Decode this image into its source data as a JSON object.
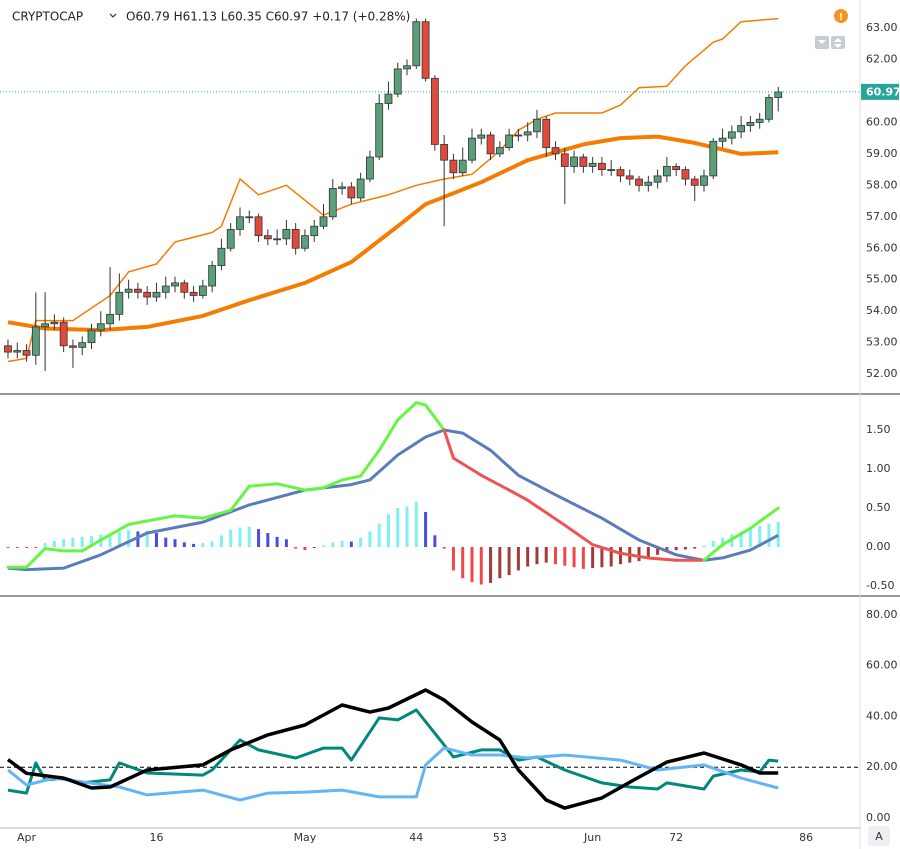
{
  "chart_data": [
    {
      "type": "candlestick",
      "title": "CRYPTOCAP",
      "subtitle": "O60.79 H61.13 L60.35 C60.97 +0.17 (+0.28%)",
      "xlim": [
        -0.86,
        91.81
      ],
      "ylim": [
        51.4,
        63.89
      ],
      "yticks": [
        {
          "value": 52,
          "label": "52.00"
        },
        {
          "value": 53,
          "label": "53.00"
        },
        {
          "value": 54,
          "label": "54.00"
        },
        {
          "value": 55,
          "label": "55.00"
        },
        {
          "value": 56,
          "label": "56.00"
        },
        {
          "value": 57,
          "label": "57.00"
        },
        {
          "value": 58,
          "label": "58.00"
        },
        {
          "value": 59,
          "label": "59.00"
        },
        {
          "value": 60,
          "label": "60.00"
        },
        {
          "value": 61,
          "label": "61.00"
        },
        {
          "value": 62,
          "label": "62.00"
        },
        {
          "value": 63,
          "label": "63.00"
        }
      ],
      "up_color": "#5a9e7a",
      "down_color": "#e04a3c",
      "last_price_color": "#26a69a",
      "x": [
        0,
        1,
        2,
        3,
        4,
        5,
        6,
        7,
        8,
        9,
        10,
        11,
        12,
        13,
        14,
        15,
        16,
        17,
        18,
        19,
        20,
        21,
        22,
        23,
        24,
        25,
        26,
        27,
        28,
        29,
        30,
        31,
        32,
        33,
        34,
        35,
        36,
        37,
        38,
        39,
        40,
        41,
        42,
        43,
        44,
        45,
        46,
        47,
        48,
        49,
        50,
        51,
        52,
        53,
        54,
        55,
        56,
        57,
        58,
        59,
        60,
        61,
        62,
        63,
        64,
        65,
        66,
        67,
        68,
        69,
        70,
        71,
        72,
        73,
        74,
        75,
        76,
        77,
        78,
        79,
        80,
        81,
        82,
        83
      ],
      "open": [
        52.9,
        52.7,
        52.75,
        52.6,
        53.5,
        53.6,
        53.65,
        52.9,
        52.85,
        53.0,
        53.4,
        53.6,
        53.9,
        54.6,
        54.7,
        54.6,
        54.45,
        54.6,
        54.8,
        54.9,
        54.6,
        54.5,
        54.8,
        55.45,
        56.0,
        56.6,
        57.0,
        57.0,
        56.4,
        56.3,
        56.3,
        56.6,
        56.0,
        56.4,
        56.7,
        57.0,
        57.9,
        57.95,
        57.6,
        58.2,
        58.9,
        60.6,
        60.9,
        61.7,
        61.8,
        63.2,
        61.4,
        59.3,
        58.8,
        58.4,
        58.8,
        59.5,
        59.6,
        59.0,
        59.2,
        59.6,
        59.6,
        59.7,
        60.1,
        59.2,
        59.0,
        58.6,
        58.9,
        58.6,
        58.7,
        58.5,
        58.5,
        58.3,
        58.2,
        58.0,
        58.1,
        58.3,
        58.6,
        58.5,
        58.2,
        58.0,
        58.3,
        59.4,
        59.5,
        59.7,
        59.9,
        60.0,
        60.1,
        60.79
      ],
      "high": [
        53.1,
        53.0,
        52.95,
        54.6,
        54.6,
        53.9,
        53.8,
        53.1,
        53.2,
        53.6,
        54.0,
        55.4,
        55.2,
        55.0,
        54.9,
        54.8,
        54.9,
        55.1,
        55.1,
        55.0,
        54.8,
        55.0,
        55.6,
        56.3,
        56.8,
        57.3,
        57.2,
        57.1,
        56.6,
        56.6,
        56.9,
        56.8,
        56.6,
        56.9,
        57.4,
        58.2,
        58.1,
        58.1,
        58.4,
        59.1,
        60.9,
        61.3,
        61.9,
        62.0,
        63.3,
        63.3,
        61.5,
        59.6,
        59.0,
        59.2,
        59.8,
        59.8,
        59.7,
        59.4,
        59.8,
        59.8,
        60.0,
        60.4,
        60.2,
        59.4,
        59.2,
        59.1,
        59.0,
        58.9,
        58.9,
        58.8,
        58.6,
        58.5,
        58.3,
        58.3,
        58.5,
        58.9,
        58.7,
        58.6,
        58.3,
        58.5,
        59.5,
        59.8,
        59.9,
        60.2,
        60.2,
        60.3,
        60.9,
        61.13
      ],
      "low": [
        52.5,
        52.5,
        52.4,
        52.3,
        52.1,
        53.4,
        52.7,
        52.2,
        52.6,
        52.8,
        53.2,
        53.4,
        53.7,
        54.4,
        54.4,
        54.2,
        54.3,
        54.4,
        54.6,
        54.4,
        54.3,
        54.4,
        54.6,
        55.3,
        55.9,
        56.4,
        56.8,
        56.2,
        56.1,
        56.1,
        56.1,
        55.8,
        55.9,
        56.2,
        56.6,
        56.9,
        57.7,
        57.4,
        57.5,
        58.1,
        58.8,
        60.4,
        60.8,
        61.5,
        61.7,
        61.3,
        59.1,
        56.7,
        58.2,
        58.3,
        58.7,
        59.3,
        58.8,
        58.9,
        59.1,
        59.4,
        59.4,
        59.5,
        58.9,
        58.8,
        57.4,
        58.4,
        58.4,
        58.4,
        58.3,
        58.3,
        58.1,
        58.0,
        57.8,
        57.8,
        57.9,
        58.1,
        58.3,
        58.0,
        57.5,
        57.8,
        58.2,
        59.2,
        59.3,
        59.5,
        59.7,
        59.8,
        60.0,
        60.35
      ],
      "close": [
        52.7,
        52.75,
        52.6,
        53.5,
        53.6,
        53.65,
        52.9,
        52.85,
        53.0,
        53.4,
        53.6,
        53.9,
        54.6,
        54.7,
        54.6,
        54.45,
        54.6,
        54.8,
        54.9,
        54.6,
        54.5,
        54.8,
        55.45,
        56.0,
        56.6,
        57.0,
        57.0,
        56.4,
        56.3,
        56.3,
        56.6,
        56.0,
        56.4,
        56.7,
        57.0,
        57.9,
        57.95,
        57.6,
        58.2,
        58.9,
        60.6,
        60.9,
        61.7,
        61.8,
        63.2,
        61.4,
        59.3,
        58.8,
        58.4,
        58.8,
        59.5,
        59.6,
        59.0,
        59.2,
        59.6,
        59.6,
        59.7,
        60.1,
        59.2,
        59.0,
        58.6,
        58.9,
        58.6,
        58.7,
        58.5,
        58.5,
        58.3,
        58.2,
        58.0,
        58.1,
        58.3,
        58.6,
        58.5,
        58.2,
        58.0,
        58.3,
        59.4,
        59.5,
        59.7,
        59.9,
        60.0,
        60.1,
        60.79,
        60.97
      ],
      "lines": [
        {
          "color": "#f57c00",
          "x": [
            0,
            2,
            3,
            7,
            11,
            13,
            16,
            18,
            22,
            23,
            25,
            27,
            30,
            34,
            37,
            41,
            44,
            47,
            50,
            53,
            55,
            57,
            59,
            64,
            66,
            68,
            71,
            73,
            76,
            77,
            79,
            83
          ],
          "values": [
            52.4,
            52.5,
            53.7,
            53.7,
            54.5,
            55.25,
            55.5,
            56.2,
            56.5,
            56.7,
            58.2,
            57.7,
            58.0,
            57.05,
            57.4,
            57.7,
            58.0,
            58.2,
            58.35,
            59.1,
            59.75,
            60.1,
            60.3,
            60.3,
            60.55,
            61.1,
            61.15,
            61.8,
            62.55,
            62.65,
            63.2,
            63.3
          ]
        },
        {
          "color": "#f57c00",
          "x": [
            0,
            4,
            10,
            15,
            21,
            26,
            32,
            37,
            42,
            45,
            51,
            56,
            62,
            66,
            70,
            74,
            79,
            83
          ],
          "values": [
            53.65,
            53.45,
            53.4,
            53.5,
            53.85,
            54.35,
            54.9,
            55.56,
            56.7,
            57.4,
            58.1,
            58.8,
            59.3,
            59.5,
            59.55,
            59.35,
            59.0,
            59.05
          ]
        }
      ]
    },
    {
      "type": "macd",
      "xlim": [
        -0.86,
        91.81
      ],
      "ylim": [
        -0.615,
        1.949
      ],
      "yticks": [
        {
          "value": -0.5,
          "label": "-0.50"
        },
        {
          "value": 0,
          "label": "0.00"
        },
        {
          "value": 0.5,
          "label": "0.50"
        },
        {
          "value": 1,
          "label": "1.00"
        },
        {
          "value": 1.5,
          "label": "1.50"
        }
      ],
      "x": [
        0,
        1,
        2,
        3,
        4,
        5,
        6,
        7,
        8,
        9,
        10,
        11,
        12,
        13,
        14,
        15,
        16,
        17,
        18,
        19,
        20,
        21,
        22,
        23,
        24,
        25,
        26,
        27,
        28,
        29,
        30,
        31,
        32,
        33,
        34,
        35,
        36,
        37,
        38,
        39,
        40,
        41,
        42,
        43,
        44,
        45,
        46,
        47,
        48,
        49,
        50,
        51,
        52,
        53,
        54,
        55,
        56,
        57,
        58,
        59,
        60,
        61,
        62,
        63,
        64,
        65,
        66,
        67,
        68,
        69,
        70,
        71,
        72,
        73,
        74,
        75,
        76,
        77,
        78,
        79,
        80,
        81,
        82,
        83
      ],
      "histogram": [
        -0.01,
        -0.01,
        -0.01,
        -0.01,
        0.05,
        0.08,
        0.1,
        0.12,
        0.13,
        0.14,
        0.16,
        0.18,
        0.2,
        0.22,
        0.2,
        0.21,
        0.18,
        0.12,
        0.1,
        0.06,
        0.04,
        0.05,
        0.07,
        0.15,
        0.22,
        0.25,
        0.26,
        0.23,
        0.18,
        0.13,
        0.1,
        -0.02,
        -0.04,
        -0.01,
        0.02,
        0.06,
        0.08,
        0.07,
        0.12,
        0.2,
        0.3,
        0.42,
        0.5,
        0.52,
        0.58,
        0.45,
        0.15,
        -0.02,
        -0.3,
        -0.4,
        -0.45,
        -0.48,
        -0.46,
        -0.4,
        -0.36,
        -0.3,
        -0.25,
        -0.22,
        -0.2,
        -0.22,
        -0.24,
        -0.26,
        -0.28,
        -0.27,
        -0.26,
        -0.25,
        -0.22,
        -0.2,
        -0.18,
        -0.15,
        -0.1,
        -0.06,
        -0.04,
        -0.03,
        -0.02,
        0.02,
        0.08,
        0.12,
        0.16,
        0.2,
        0.24,
        0.27,
        0.3,
        0.32
      ],
      "histogram_colors": [
        "#80f0f0",
        "#4a4ae8",
        "#f04848",
        "#a33a3a"
      ],
      "lines": [
        {
          "color": "#5b7cba",
          "x": [
            0,
            2,
            6,
            10,
            15,
            21,
            26,
            32,
            37,
            39,
            42,
            45,
            47,
            49,
            52,
            55,
            59,
            64,
            68,
            72,
            75,
            77,
            80,
            83
          ],
          "values": [
            -0.27,
            -0.29,
            -0.27,
            -0.1,
            0.18,
            0.32,
            0.54,
            0.73,
            0.8,
            0.86,
            1.18,
            1.41,
            1.5,
            1.46,
            1.24,
            0.92,
            0.67,
            0.37,
            0.09,
            -0.1,
            -0.17,
            -0.14,
            -0.04,
            0.15
          ]
        },
        {
          "up_color": "#66f542",
          "down_color": "#f05252",
          "x": [
            0,
            2,
            4,
            6,
            8,
            10,
            13,
            18,
            21,
            24,
            26,
            29,
            32,
            34,
            36,
            38,
            40,
            42,
            44,
            45,
            47,
            48,
            51,
            54,
            56,
            60,
            63,
            66,
            69,
            72,
            75,
            77,
            80,
            83
          ],
          "values": [
            -0.26,
            -0.26,
            -0.02,
            -0.05,
            -0.05,
            0.09,
            0.29,
            0.4,
            0.37,
            0.47,
            0.78,
            0.81,
            0.73,
            0.76,
            0.86,
            0.91,
            1.24,
            1.63,
            1.85,
            1.82,
            1.5,
            1.14,
            0.92,
            0.73,
            0.6,
            0.28,
            0.03,
            -0.08,
            -0.14,
            -0.17,
            -0.17,
            0.03,
            0.24,
            0.5
          ]
        }
      ]
    },
    {
      "type": "line",
      "xlim": [
        -0.86,
        91.81
      ],
      "ylim": [
        -3.94,
        87.0
      ],
      "yticks": [
        {
          "value": 0,
          "label": "0.00"
        },
        {
          "value": 20,
          "label": "20.00"
        },
        {
          "value": 40,
          "label": "40.00"
        },
        {
          "value": 60,
          "label": "60.00"
        },
        {
          "value": 80,
          "label": "80.00"
        }
      ],
      "xticks": [
        {
          "value": 2,
          "label": "Apr"
        },
        16,
        {
          "value": 32,
          "label": "May"
        },
        44,
        53,
        {
          "value": 63,
          "label": "Jun"
        },
        72,
        86
      ],
      "hline": 20,
      "lines": [
        {
          "color": "#00897b",
          "x": [
            0,
            2,
            3,
            4,
            6,
            8,
            11,
            12,
            15,
            21,
            22,
            25,
            27,
            31,
            34,
            36,
            37,
            40,
            42,
            44,
            47,
            48,
            51,
            53,
            55,
            57,
            60,
            64,
            67,
            70,
            71,
            75,
            76,
            79,
            81,
            82,
            83
          ],
          "values": [
            11,
            9.8,
            21.7,
            15,
            15.7,
            13.8,
            15,
            21.7,
            17.7,
            16.9,
            18.9,
            30.7,
            26.8,
            23.6,
            27.5,
            27.5,
            22.8,
            39.4,
            38.6,
            42.5,
            28.7,
            24,
            26.8,
            26.8,
            22.8,
            24,
            18.9,
            13.8,
            12.2,
            11.4,
            13.8,
            11.4,
            16.5,
            18.9,
            18.1,
            22.8,
            22.4
          ]
        },
        {
          "color": "#64b5f6",
          "x": [
            0,
            2,
            5,
            8,
            12,
            15,
            21,
            25,
            28,
            32,
            36,
            40,
            44,
            45,
            47,
            50,
            53,
            56,
            60,
            66,
            70,
            75,
            79,
            83
          ],
          "values": [
            18.9,
            13,
            15.7,
            14.2,
            12.2,
            9.1,
            11,
            7.1,
            9.8,
            10.2,
            11,
            8.3,
            8.3,
            20.9,
            27.6,
            24.8,
            24.8,
            23.6,
            24.8,
            22.8,
            18.9,
            20.9,
            15.7,
            11.8
          ]
        },
        {
          "color": "#000000",
          "x": [
            0,
            2,
            6,
            9,
            11,
            15,
            21,
            24,
            28,
            32,
            36,
            39,
            41,
            45,
            47,
            50,
            53,
            55,
            58,
            60,
            64,
            68,
            71,
            75,
            79,
            81,
            83
          ],
          "values": [
            23,
            17.6,
            15.7,
            11.8,
            12.2,
            18.9,
            20.9,
            26.8,
            32.7,
            36.6,
            44.5,
            41.7,
            43.3,
            50.4,
            46.4,
            37.8,
            30.7,
            18.9,
            7.1,
            3.9,
            7.9,
            16.1,
            22,
            25.6,
            20.9,
            17.7,
            17.7
          ]
        }
      ]
    }
  ]
}
